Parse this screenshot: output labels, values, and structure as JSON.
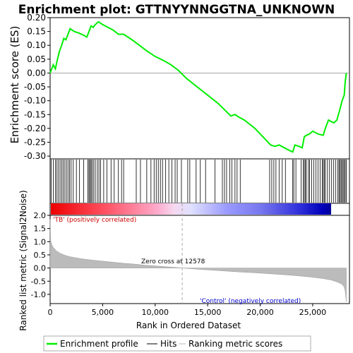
{
  "chart_data": [
    {
      "type": "line",
      "title": "Enrichment plot: GTTNYYNNGGTNA_UNKNOWN",
      "ylabel": "Enrichment score (ES)",
      "ylim": [
        -0.31,
        0.2
      ],
      "yticks": [
        0.2,
        0.15,
        0.1,
        0.05,
        0.0,
        -0.05,
        -0.1,
        -0.15,
        -0.2,
        -0.25,
        -0.3
      ],
      "ytick_labels": [
        "0.20",
        "0.15",
        "0.10",
        "0.05",
        "0.00",
        "-0.05",
        "-0.10",
        "-0.15",
        "-0.20",
        "-0.25",
        "-0.30"
      ],
      "xlim": [
        0,
        28500
      ],
      "grid": false,
      "series": [
        {
          "name": "Enrichment profile",
          "color": "#00ee00",
          "x": [
            0,
            300,
            500,
            700,
            900,
            1100,
            1300,
            1500,
            1700,
            1900,
            2300,
            2700,
            3000,
            3500,
            3700,
            3900,
            4100,
            4300,
            4600,
            5000,
            5500,
            6000,
            6500,
            7000,
            7800,
            8500,
            9200,
            10000,
            10800,
            11500,
            12200,
            13000,
            14000,
            15000,
            16000,
            16800,
            17200,
            17600,
            18000,
            18500,
            19500,
            20500,
            21000,
            21400,
            21800,
            22300,
            22800,
            23100,
            23300,
            23700,
            24000,
            24200,
            24400,
            24700,
            25000,
            25500,
            26000,
            26200,
            26500,
            27000,
            27300,
            27600,
            27800,
            28000,
            28100,
            28200
          ],
          "y": [
            0.0,
            0.03,
            0.015,
            0.05,
            0.08,
            0.1,
            0.125,
            0.12,
            0.14,
            0.16,
            0.15,
            0.145,
            0.14,
            0.13,
            0.15,
            0.17,
            0.165,
            0.175,
            0.185,
            0.175,
            0.165,
            0.155,
            0.14,
            0.14,
            0.12,
            0.1,
            0.08,
            0.06,
            0.045,
            0.03,
            0.01,
            -0.02,
            -0.05,
            -0.08,
            -0.11,
            -0.14,
            -0.155,
            -0.15,
            -0.16,
            -0.17,
            -0.2,
            -0.24,
            -0.26,
            -0.265,
            -0.26,
            -0.27,
            -0.28,
            -0.285,
            -0.26,
            -0.265,
            -0.27,
            -0.23,
            -0.225,
            -0.22,
            -0.21,
            -0.22,
            -0.225,
            -0.2,
            -0.17,
            -0.18,
            -0.17,
            -0.13,
            -0.1,
            -0.08,
            -0.03,
            0.0
          ]
        }
      ]
    },
    {
      "type": "scatter",
      "description_free": true,
      "series": [
        {
          "name": "Hits",
          "color": "#000000",
          "x": [
            100,
            300,
            500,
            650,
            800,
            950,
            1100,
            1250,
            1400,
            1550,
            1700,
            1850,
            2000,
            2200,
            2500,
            2800,
            3200,
            3600,
            3700,
            3800,
            3900,
            4000,
            4150,
            4300,
            4500,
            4650,
            4800,
            5100,
            5400,
            5800,
            6100,
            6500,
            6800,
            7000,
            8200,
            8600,
            9200,
            9600,
            9900,
            10100,
            10300,
            10500,
            10700,
            11000,
            11300,
            11600,
            11900,
            12100,
            12500,
            13100,
            13300,
            13900,
            14300,
            14800,
            15700,
            16400,
            16600,
            16800,
            17100,
            17300,
            17600,
            17800,
            18100,
            20900,
            21100,
            21300,
            21500,
            21800,
            22100,
            22400,
            23100,
            23200,
            23400,
            23900,
            24100,
            24200,
            24300,
            24400,
            24600,
            24700,
            24900,
            25100,
            25300,
            25500,
            25700,
            25900,
            26000,
            26100,
            26200,
            26400,
            26600,
            26800,
            27000,
            27200,
            27400,
            27500,
            27600,
            27700,
            27800,
            27900,
            28000,
            28100,
            28200
          ]
        }
      ]
    },
    {
      "type": "area",
      "xlabel": "Rank in Ordered Dataset",
      "ylabel": "Ranked list metric (Signal2Noise)",
      "ylim": [
        -1.35,
        2.0
      ],
      "yticks": [
        2.0,
        1.5,
        1.0,
        0.5,
        0.0,
        -0.5,
        -1.0
      ],
      "ytick_labels": [
        "2.0",
        "1.5",
        "1.0",
        "0.5",
        "0.0",
        "-0.5",
        "-1.0"
      ],
      "xlim": [
        0,
        28500
      ],
      "xticks": [
        0,
        5000,
        10000,
        15000,
        20000,
        25000
      ],
      "xtick_labels": [
        "0",
        "5,000",
        "10,000",
        "15,000",
        "20,000",
        "25,000"
      ],
      "zero_cross": 12578,
      "annotations": [
        "Zero cross at 12578",
        "'TB' (positively correlated)",
        "'Control' (negatively correlated)"
      ],
      "series": [
        {
          "name": "Ranking metric scores",
          "color": "#bbbbbb",
          "x": [
            0,
            50,
            150,
            300,
            600,
            1000,
            1500,
            2000,
            3000,
            4000,
            5000,
            6000,
            7000,
            8000,
            9000,
            10000,
            11000,
            12000,
            12578,
            13500,
            15000,
            16500,
            18000,
            19500,
            21000,
            22500,
            24000,
            25000,
            26000,
            26800,
            27400,
            27800,
            28000,
            28100,
            28200
          ],
          "y": [
            1.85,
            1.05,
            0.9,
            0.78,
            0.65,
            0.55,
            0.47,
            0.42,
            0.35,
            0.3,
            0.26,
            0.22,
            0.18,
            0.15,
            0.11,
            0.08,
            0.05,
            0.02,
            0.0,
            -0.03,
            -0.07,
            -0.11,
            -0.15,
            -0.18,
            -0.22,
            -0.26,
            -0.31,
            -0.35,
            -0.4,
            -0.46,
            -0.54,
            -0.62,
            -0.72,
            -0.9,
            -1.28
          ]
        }
      ]
    }
  ],
  "legend": {
    "items": [
      {
        "label": "Enrichment profile",
        "color": "#00ee00"
      },
      {
        "label": "Hits",
        "color": "#000000"
      },
      {
        "label": "Ranking metric scores",
        "color": "#bbbbbb"
      }
    ]
  }
}
